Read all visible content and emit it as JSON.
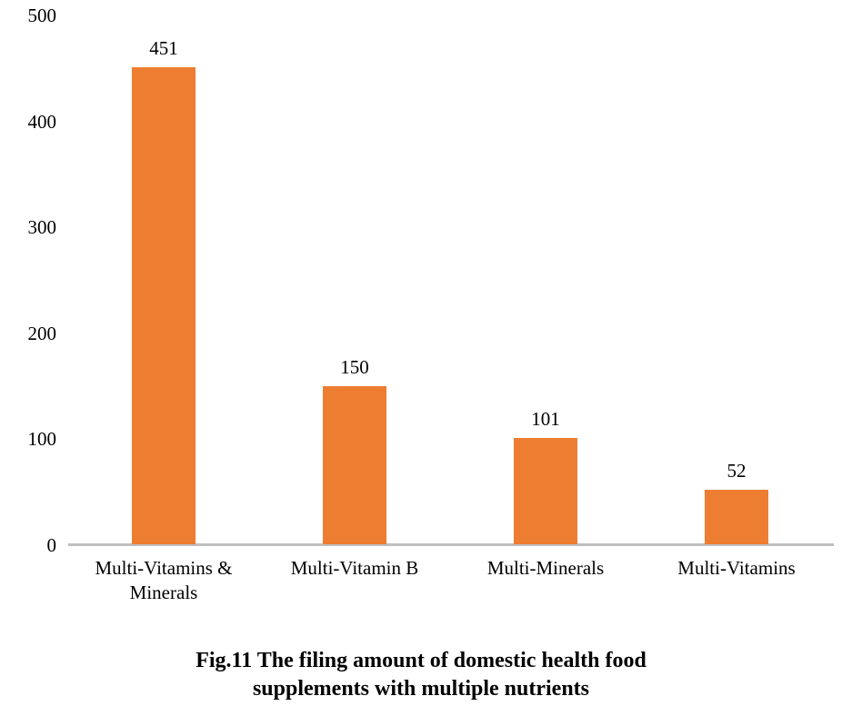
{
  "chart_data": {
    "type": "bar",
    "categories": [
      "Multi-Vitamins & Minerals",
      "Multi-Vitamin B",
      "Multi-Minerals",
      "Multi-Vitamins"
    ],
    "values": [
      451,
      150,
      101,
      52
    ],
    "title": "Fig.11 The filing amount of domestic health food supplements with multiple nutrients",
    "title_lines": [
      "Fig.11 The filing amount of domestic health food",
      "supplements with multiple nutrients"
    ],
    "xlabel": "",
    "ylabel": "",
    "ylim": [
      0,
      500
    ],
    "yticks": [
      0,
      100,
      200,
      300,
      400,
      500
    ],
    "grid": false,
    "legend": false,
    "data_labels_shown": true,
    "bar_color": "#ED7D31",
    "axis_line_color": "#BFBFBF",
    "text_color": "#000000",
    "background_color": "#FFFFFF"
  }
}
